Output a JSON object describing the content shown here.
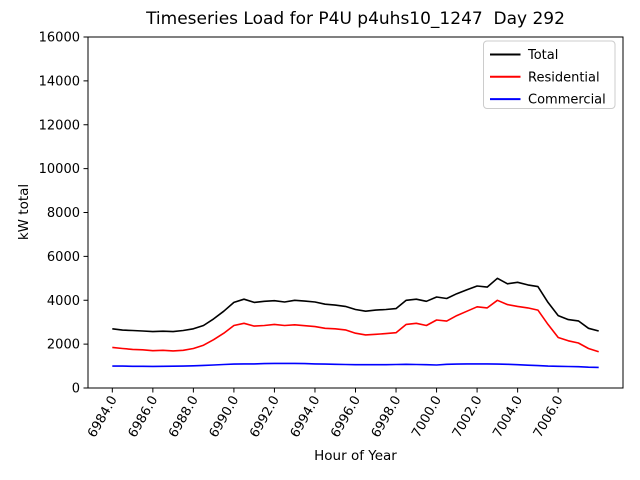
{
  "chart_data": {
    "type": "line",
    "title": "Timeseries Load for P4U p4uhs10_1247  Day 292",
    "xlabel": "Hour of Year",
    "ylabel": "kW total",
    "xlim": [
      6982.8,
      7009.2
    ],
    "ylim": [
      0,
      16000
    ],
    "grid": false,
    "xtick_values": [
      6984,
      6986,
      6988,
      6990,
      6992,
      6994,
      6996,
      6998,
      7000,
      7002,
      7004,
      7006
    ],
    "xtick_labels": [
      "6984.0",
      "6986.0",
      "6988.0",
      "6990.0",
      "6992.0",
      "6994.0",
      "6996.0",
      "6998.0",
      "7000.0",
      "7002.0",
      "7004.0",
      "7006.0"
    ],
    "xtick_rotation_deg": 60,
    "ytick_values": [
      0,
      2000,
      4000,
      6000,
      8000,
      10000,
      12000,
      14000,
      16000
    ],
    "ytick_labels": [
      "0",
      "2000",
      "4000",
      "6000",
      "8000",
      "10000",
      "12000",
      "14000",
      "16000"
    ],
    "legend": {
      "position": "upper right",
      "border_color": "#cccccc",
      "background": "#ffffff",
      "entries": [
        {
          "label": "Total",
          "color": "#000000"
        },
        {
          "label": "Residential",
          "color": "#ff0000"
        },
        {
          "label": "Commercial",
          "color": "#0000ff"
        }
      ]
    },
    "x": [
      6984,
      6984.5,
      6985,
      6985.5,
      6986,
      6986.5,
      6987,
      6987.5,
      6988,
      6988.5,
      6989,
      6989.5,
      6990,
      6990.5,
      6991,
      6991.5,
      6992,
      6992.5,
      6993,
      6993.5,
      6994,
      6994.5,
      6995,
      6995.5,
      6996,
      6996.5,
      6997,
      6997.5,
      6998,
      6998.5,
      6999,
      6999.5,
      7000,
      7000.5,
      7001,
      7001.5,
      7002,
      7002.5,
      7003,
      7003.5,
      7004,
      7004.5,
      7005,
      7005.5,
      7006,
      7006.5,
      7007,
      7007.5,
      7008
    ],
    "series": [
      {
        "name": "Total",
        "color": "#000000",
        "values": [
          2700,
          2640,
          2620,
          2600,
          2570,
          2590,
          2570,
          2620,
          2700,
          2850,
          3150,
          3500,
          3900,
          4050,
          3900,
          3950,
          3980,
          3920,
          4000,
          3960,
          3920,
          3820,
          3780,
          3720,
          3580,
          3500,
          3550,
          3580,
          3620,
          4000,
          4050,
          3950,
          4150,
          4080,
          4300,
          4480,
          4650,
          4600,
          5000,
          4750,
          4820,
          4700,
          4620,
          3900,
          3300,
          3120,
          3060,
          2720,
          2600
        ]
      },
      {
        "name": "Residential",
        "color": "#ff0000",
        "values": [
          1850,
          1800,
          1760,
          1740,
          1700,
          1720,
          1690,
          1720,
          1800,
          1950,
          2200,
          2500,
          2850,
          2950,
          2820,
          2850,
          2900,
          2850,
          2880,
          2840,
          2800,
          2720,
          2700,
          2650,
          2500,
          2420,
          2450,
          2480,
          2520,
          2900,
          2950,
          2850,
          3100,
          3050,
          3300,
          3500,
          3700,
          3650,
          4000,
          3800,
          3720,
          3650,
          3550,
          2900,
          2300,
          2150,
          2050,
          1800,
          1650
        ]
      },
      {
        "name": "Commercial",
        "color": "#0000ff",
        "values": [
          1000,
          1000,
          990,
          990,
          985,
          990,
          995,
          1000,
          1010,
          1030,
          1050,
          1070,
          1090,
          1100,
          1100,
          1110,
          1120,
          1120,
          1120,
          1110,
          1100,
          1090,
          1080,
          1070,
          1060,
          1060,
          1060,
          1060,
          1070,
          1080,
          1070,
          1060,
          1050,
          1080,
          1090,
          1100,
          1100,
          1100,
          1090,
          1080,
          1060,
          1040,
          1020,
          1000,
          990,
          980,
          970,
          950,
          940
        ]
      }
    ]
  },
  "axis": {
    "spine_color": "#000000",
    "tick_color": "#000000",
    "text_color": "#000000"
  }
}
